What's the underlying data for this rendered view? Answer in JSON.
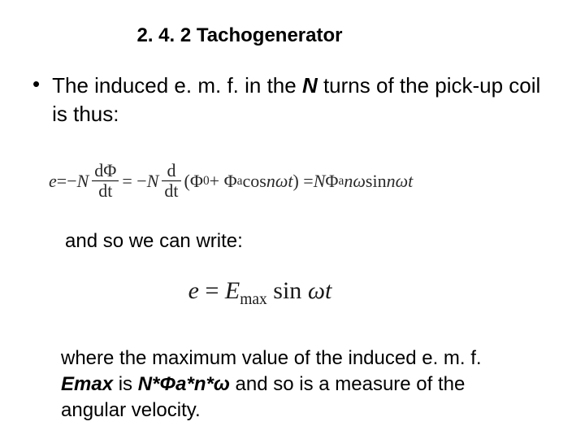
{
  "title": "2. 4. 2 Tachogenerator",
  "bullet": {
    "marker": "•",
    "pre": "The induced e. m. f.  in the ",
    "N": "N",
    "post": " turns of the pick-up coil is thus:"
  },
  "eq1": {
    "lhs_e": "e",
    "eq": " = ",
    "neg": "−",
    "N": "N",
    "dPhi": "dΦ",
    "dt": "dt",
    "neg2": " = −",
    "N2": "N",
    "d": "d",
    "dt2": "dt",
    "open": "(Φ",
    "sub0": "0",
    "plus": " + Φ",
    "suba": "a",
    "cos": " cos ",
    "nwt": "nωt",
    "close": ") = ",
    "N3": "N",
    "Phia": "Φ",
    "suba2": "a",
    "nw": "nω",
    "sin": " sin ",
    "nwt2": "nωt"
  },
  "mid": "and so we can write:",
  "eq2": {
    "e": "e",
    "eq": " = ",
    "E": "E",
    "max": "max",
    "sin": " sin ",
    "wt": "ωt"
  },
  "bottom": {
    "pre": "where the maximum value of the induced e. m. f. ",
    "Emax": "Emax",
    "mid1": " is ",
    "formula": "N*Φa*n*ω",
    "post": " and so is a measure of the angular velocity."
  }
}
